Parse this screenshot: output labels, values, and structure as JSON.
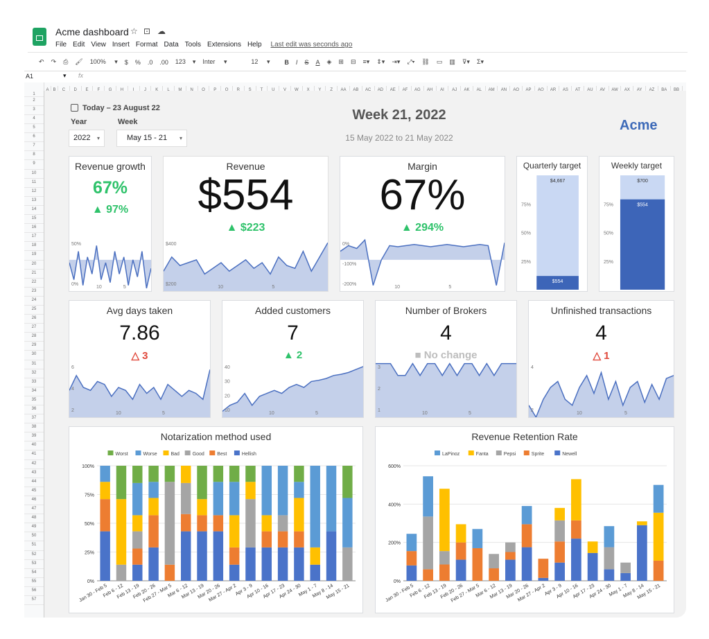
{
  "app": {
    "title": "Acme dashboard",
    "menu": [
      "File",
      "Edit",
      "View",
      "Insert",
      "Format",
      "Data",
      "Tools",
      "Extensions",
      "Help"
    ],
    "last_edit": "Last edit was seconds ago"
  },
  "toolbar": {
    "zoom": "100%",
    "currency": "$",
    "percent": "%",
    "dec_less": ".0",
    "dec_more": ".00",
    "format": "123",
    "font": "Inter",
    "size": "12"
  },
  "formula": {
    "cell": "A1",
    "fx": "fx"
  },
  "columns": [
    "A",
    "B",
    "C",
    "D",
    "E",
    "F",
    "G",
    "H",
    "I",
    "J",
    "K",
    "L",
    "M",
    "N",
    "O",
    "P",
    "Q",
    "R",
    "S",
    "T",
    "U",
    "V",
    "W",
    "X",
    "Y",
    "Z",
    "AA",
    "AB",
    "AC",
    "AD",
    "AE",
    "AF",
    "AG",
    "AH",
    "AI",
    "AJ",
    "AK",
    "AL",
    "AM",
    "AN",
    "AO",
    "AP",
    "AQ",
    "AR",
    "AS",
    "AT",
    "AU",
    "AV",
    "AW",
    "AX",
    "AY",
    "AZ",
    "BA",
    "BB"
  ],
  "rows_count": 57,
  "header": {
    "today": "Today – 23 August 22",
    "year_label": "Year",
    "week_label": "Week",
    "year_value": "2022",
    "week_value": "May 15 - 21",
    "week_title": "Week 21, 2022",
    "date_range": "15 May 2022 to 21 May 2022",
    "brand": "Acme"
  },
  "kpis": {
    "revenue_growth": {
      "title": "Revenue growth",
      "value": "67%",
      "delta": "▲ 97%",
      "axis": [
        "50%",
        "0%"
      ],
      "x": [
        "10",
        "5"
      ],
      "spark": [
        0.5,
        0.2,
        0.7,
        0.1,
        0.6,
        0.3,
        0.8,
        0.2,
        0.5,
        0.15,
        0.7,
        0.3,
        0.6,
        0.1,
        0.55,
        0.25,
        0.7,
        0.05,
        0.4
      ]
    },
    "revenue": {
      "title": "Revenue",
      "value": "$554",
      "delta": "▲ $223",
      "axis": [
        "$400",
        "$200"
      ],
      "x": [
        "10",
        "5"
      ],
      "spark": [
        0.35,
        0.6,
        0.45,
        0.5,
        0.55,
        0.3,
        0.4,
        0.5,
        0.35,
        0.45,
        0.55,
        0.4,
        0.5,
        0.3,
        0.6,
        0.45,
        0.4,
        0.7,
        0.35,
        0.6,
        0.85
      ]
    },
    "margin": {
      "title": "Margin",
      "value": "67%",
      "delta": "▲ 294%",
      "axis": [
        "0%",
        "-100%",
        "-200%"
      ],
      "x": [
        "10",
        "5"
      ],
      "spark": [
        0.7,
        0.8,
        0.75,
        0.9,
        0.1,
        0.55,
        0.8,
        0.78,
        0.8,
        0.82,
        0.8,
        0.78,
        0.8,
        0.82,
        0.8,
        0.78,
        0.8,
        0.82,
        0.8,
        0.1,
        0.85
      ]
    },
    "quarterly_target": {
      "title": "Quarterly target",
      "target": "$4,667",
      "value": "$554",
      "fill": 0.12,
      "ticks": [
        "75%",
        "50%",
        "25%"
      ]
    },
    "weekly_target": {
      "title": "Weekly target",
      "target": "$700",
      "value": "$554",
      "fill": 0.79,
      "ticks": [
        "75%",
        "50%",
        "25%"
      ]
    },
    "avg_days": {
      "title": "Avg days taken",
      "value": "7.86",
      "delta": "△ 3",
      "axis": [
        "6",
        "4",
        "2"
      ],
      "x": [
        "10",
        "5"
      ],
      "spark": [
        0.45,
        0.7,
        0.5,
        0.45,
        0.6,
        0.55,
        0.35,
        0.5,
        0.45,
        0.3,
        0.55,
        0.4,
        0.5,
        0.3,
        0.55,
        0.45,
        0.35,
        0.45,
        0.4,
        0.3,
        0.8
      ]
    },
    "added_customers": {
      "title": "Added customers",
      "value": "7",
      "delta": "▲ 2",
      "axis": [
        "40",
        "30",
        "20",
        "10"
      ],
      "x": [
        "10",
        "5"
      ],
      "spark": [
        0.1,
        0.2,
        0.25,
        0.4,
        0.2,
        0.35,
        0.4,
        0.45,
        0.4,
        0.5,
        0.55,
        0.5,
        0.6,
        0.62,
        0.65,
        0.7,
        0.72,
        0.75,
        0.8,
        0.85
      ]
    },
    "brokers": {
      "title": "Number of Brokers",
      "value": "4",
      "delta": "■ No change",
      "axis": [
        "3",
        "2",
        "1"
      ],
      "x": [
        "10",
        "5"
      ],
      "spark": [
        0.9,
        0.9,
        0.9,
        0.7,
        0.7,
        0.9,
        0.7,
        0.9,
        0.9,
        0.7,
        0.9,
        0.7,
        0.9,
        0.9,
        0.7,
        0.9,
        0.7,
        0.9,
        0.9,
        0.9
      ]
    },
    "unfinished": {
      "title": "Unfinished transactions",
      "value": "4",
      "delta": "△ 1",
      "axis": [
        "4",
        "2"
      ],
      "x": [
        "10",
        "5"
      ],
      "spark": [
        0.2,
        0.0,
        0.3,
        0.5,
        0.6,
        0.3,
        0.2,
        0.5,
        0.7,
        0.4,
        0.75,
        0.3,
        0.6,
        0.2,
        0.5,
        0.6,
        0.25,
        0.55,
        0.3,
        0.65,
        0.7
      ]
    }
  },
  "colors": {
    "green": "#2ec26a",
    "red": "#e0483b",
    "gray": "#bdbdbd",
    "blue": "#4a6fc0",
    "fill": "#c4d0ea",
    "brand": "#3d6ab8"
  },
  "chart_data": [
    {
      "type": "bar",
      "stacked": true,
      "title": "Notarization method used",
      "categories": [
        "Jan 30 - Feb 5",
        "Feb 6 - 12",
        "Feb 13 - 19",
        "Feb 20 - 26",
        "Feb 27 - Mar 5",
        "Mar 6 - 12",
        "Mar 13 - 19",
        "Mar 20 - 26",
        "Mar 27 - Apr 2",
        "Apr 3 - 9",
        "Apr 10 - 16",
        "Apr 17 - 23",
        "Apr 24 - 30",
        "May 1 - 7",
        "May 8 - 14",
        "May 15 - 21"
      ],
      "ylim": [
        0,
        100
      ],
      "yticks": [
        "0%",
        "25%",
        "50%",
        "75%",
        "100%"
      ],
      "legend": "top",
      "series": [
        {
          "name": "Hellish",
          "color": "#4a73c9",
          "values": [
            43,
            0,
            14,
            29,
            0,
            43,
            43,
            43,
            14,
            29,
            29,
            29,
            29,
            14,
            43,
            0
          ]
        },
        {
          "name": "Best",
          "color": "#ed7d31",
          "values": [
            28,
            0,
            14,
            28,
            14,
            15,
            14,
            14,
            15,
            0,
            14,
            14,
            14,
            0,
            0,
            0
          ]
        },
        {
          "name": "Good",
          "color": "#a5a5a5",
          "values": [
            0,
            14,
            15,
            0,
            72,
            27,
            0,
            0,
            0,
            42,
            0,
            14,
            0,
            0,
            0,
            29
          ]
        },
        {
          "name": "Bad",
          "color": "#ffc000",
          "values": [
            15,
            57,
            14,
            15,
            0,
            15,
            14,
            0,
            28,
            15,
            14,
            0,
            29,
            15,
            0,
            0
          ]
        },
        {
          "name": "Worse",
          "color": "#5b9bd5",
          "values": [
            14,
            0,
            28,
            14,
            0,
            0,
            0,
            29,
            29,
            0,
            43,
            43,
            14,
            71,
            57,
            43
          ]
        },
        {
          "name": "Worst",
          "color": "#70ad47",
          "values": [
            0,
            29,
            15,
            14,
            14,
            0,
            29,
            14,
            14,
            14,
            0,
            0,
            14,
            0,
            0,
            28
          ]
        }
      ]
    },
    {
      "type": "bar",
      "stacked": true,
      "title": "Revenue Retention Rate",
      "categories": [
        "Jan 30 - Feb 5",
        "Feb 6 - 12",
        "Feb 13 - 19",
        "Feb 20 - 26",
        "Feb 27 - Mar 5",
        "Mar 6 - 12",
        "Mar 13 - 19",
        "Mar 20 - 26",
        "Mar 27 - Apr 2",
        "Apr 3 - 9",
        "Apr 10 - 16",
        "Apr 17 - 23",
        "Apr 24 - 30",
        "May 1 - 7",
        "May 8 - 14",
        "May 15 - 21"
      ],
      "ylim": [
        0,
        600
      ],
      "yticks": [
        "0%",
        "200%",
        "400%",
        "600%"
      ],
      "legend": "top",
      "series": [
        {
          "name": "Newell",
          "color": "#4a73c9",
          "values": [
            80,
            0,
            0,
            110,
            0,
            0,
            110,
            175,
            15,
            95,
            220,
            145,
            60,
            40,
            290,
            0
          ]
        },
        {
          "name": "Sprite",
          "color": "#ed7d31",
          "values": [
            75,
            60,
            85,
            90,
            170,
            65,
            40,
            120,
            100,
            110,
            95,
            0,
            0,
            0,
            0,
            105
          ]
        },
        {
          "name": "Pepsi",
          "color": "#a5a5a5",
          "values": [
            0,
            275,
            70,
            0,
            0,
            75,
            50,
            0,
            0,
            110,
            0,
            0,
            115,
            55,
            0,
            0
          ]
        },
        {
          "name": "Fanta",
          "color": "#ffc000",
          "values": [
            0,
            0,
            325,
            95,
            0,
            0,
            0,
            0,
            0,
            65,
            215,
            60,
            0,
            0,
            20,
            250
          ]
        },
        {
          "name": "LaPinoz",
          "color": "#5b9bd5",
          "values": [
            90,
            210,
            0,
            0,
            100,
            0,
            0,
            95,
            0,
            0,
            0,
            0,
            110,
            0,
            0,
            145
          ]
        }
      ]
    }
  ]
}
